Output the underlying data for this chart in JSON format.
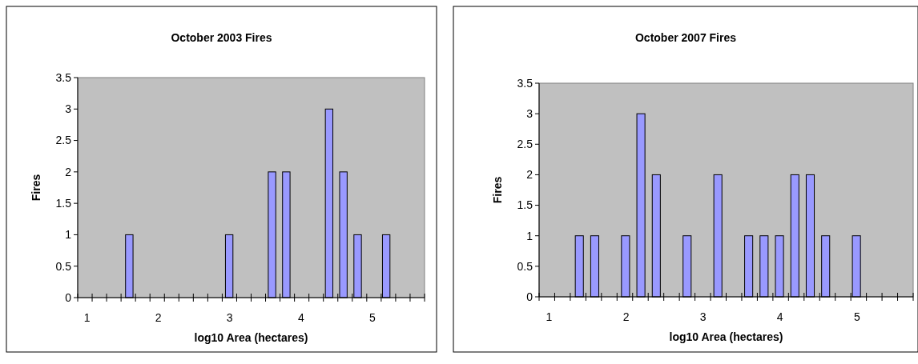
{
  "chart_data": [
    {
      "type": "bar",
      "title": "October 2003 Fires",
      "xlabel": "log10 Area (hectares)",
      "ylabel": "Fires",
      "categories": [
        "1",
        null,
        null,
        null,
        null,
        "2",
        null,
        null,
        null,
        null,
        "3",
        null,
        null,
        null,
        null,
        "4",
        null,
        null,
        null,
        null,
        "5",
        null,
        null,
        null
      ],
      "values": [
        0,
        0,
        0,
        1,
        0,
        0,
        0,
        0,
        0,
        0,
        1,
        0,
        0,
        2,
        2,
        0,
        0,
        3,
        2,
        1,
        0,
        1,
        0,
        0
      ],
      "color": "#9999ff",
      "ylim": [
        0,
        3.5
      ],
      "yticks": [
        0,
        0.5,
        1,
        1.5,
        2,
        2.5,
        3,
        3.5
      ]
    },
    {
      "type": "bar",
      "title": "October 2007 Fires",
      "xlabel": "log10 Area (hectares)",
      "ylabel": "Fires",
      "categories": [
        "1",
        null,
        null,
        null,
        null,
        "2",
        null,
        null,
        null,
        null,
        "3",
        null,
        null,
        null,
        null,
        "4",
        null,
        null,
        null,
        null,
        "5",
        null,
        null,
        null
      ],
      "values": [
        0,
        0,
        1,
        1,
        0,
        1,
        3,
        2,
        0,
        1,
        0,
        2,
        0,
        1,
        1,
        1,
        2,
        2,
        1,
        0,
        1,
        0,
        0,
        0
      ],
      "color": "#9999ff",
      "ylim": [
        0,
        3.5
      ],
      "yticks": [
        0,
        0.5,
        1,
        1.5,
        2,
        2.5,
        3,
        3.5
      ]
    }
  ]
}
